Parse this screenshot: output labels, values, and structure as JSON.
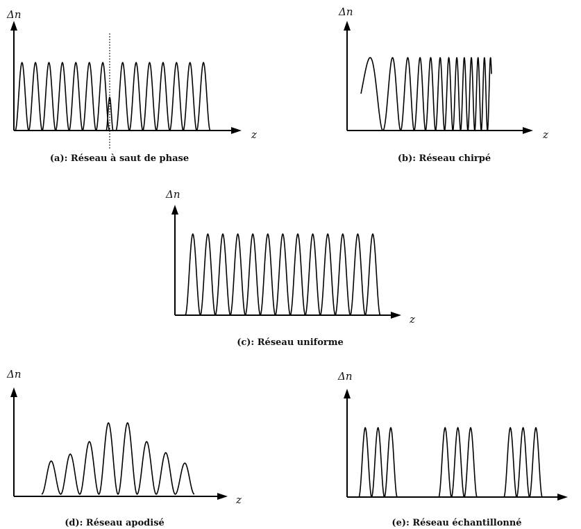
{
  "panels": {
    "a": {
      "ylabel": "Δn",
      "xlabel": "z",
      "caption": "(a): Réseau à saut de phase"
    },
    "b": {
      "ylabel": "Δn",
      "xlabel": "z",
      "caption": "(b): Réseau chirpé"
    },
    "c": {
      "ylabel": "Δn",
      "xlabel": "z",
      "caption": "(c): Réseau uniforme"
    },
    "d": {
      "ylabel": "Δn",
      "xlabel": "z",
      "caption": "(d): Réseau apodisé"
    },
    "e": {
      "ylabel": "Δn",
      "xlabel": "z",
      "caption": "(e): Réseau échantillonné"
    }
  }
}
